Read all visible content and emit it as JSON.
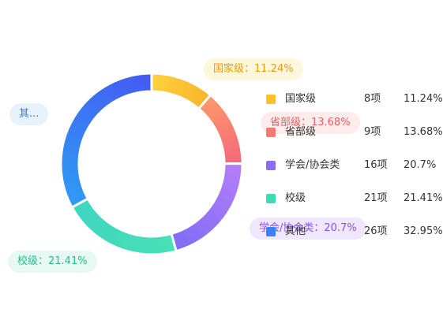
{
  "chart_data": {
    "type": "pie",
    "style": "donut",
    "slices": [
      {
        "key": "guojia",
        "name": "国家级",
        "count_label": "8项",
        "percent": 11.24,
        "percent_label": "11.24%",
        "callout": "国家级：11.24%",
        "color_start": "#ffd23f",
        "color_end": "#f8b42a",
        "label_bg": "#fff6dc",
        "label_color": "#e5a100",
        "swatch": "#fbc02d"
      },
      {
        "key": "shengbu",
        "name": "省部级",
        "count_label": "9项",
        "percent": 13.68,
        "percent_label": "13.68%",
        "callout": "省部级：13.68%",
        "color_start": "#fb9a6a",
        "color_end": "#f5677a",
        "label_bg": "#fdecec",
        "label_color": "#ee5d5d",
        "swatch": "#f57a72"
      },
      {
        "key": "xuehui",
        "name": "学会/协会类",
        "count_label": "16项",
        "percent": 20.7,
        "percent_label": "20.7%",
        "callout": "学会/协会类：20.7%",
        "color_start": "#b77ef8",
        "color_end": "#7d6cf6",
        "label_bg": "#efe7fd",
        "label_color": "#8a52e6",
        "swatch": "#8b6cf6"
      },
      {
        "key": "xiaoji",
        "name": "校级",
        "count_label": "21项",
        "percent": 21.41,
        "percent_label": "21.41%",
        "callout": "校级：21.41%",
        "color_start": "#48e0b4",
        "color_end": "#3fd6c2",
        "label_bg": "#e6f9f2",
        "label_color": "#1fbf8c",
        "swatch": "#3fdcb1"
      },
      {
        "key": "qita",
        "name": "其他",
        "count_label": "26项",
        "percent": 32.95,
        "percent_label": "32.95%",
        "callout": "其...",
        "color_start": "#2f9cf5",
        "color_end": "#4459f2",
        "label_bg": "#e6f2fc",
        "label_color": "#2b82e6",
        "swatch": "#3b82f6"
      }
    ]
  }
}
